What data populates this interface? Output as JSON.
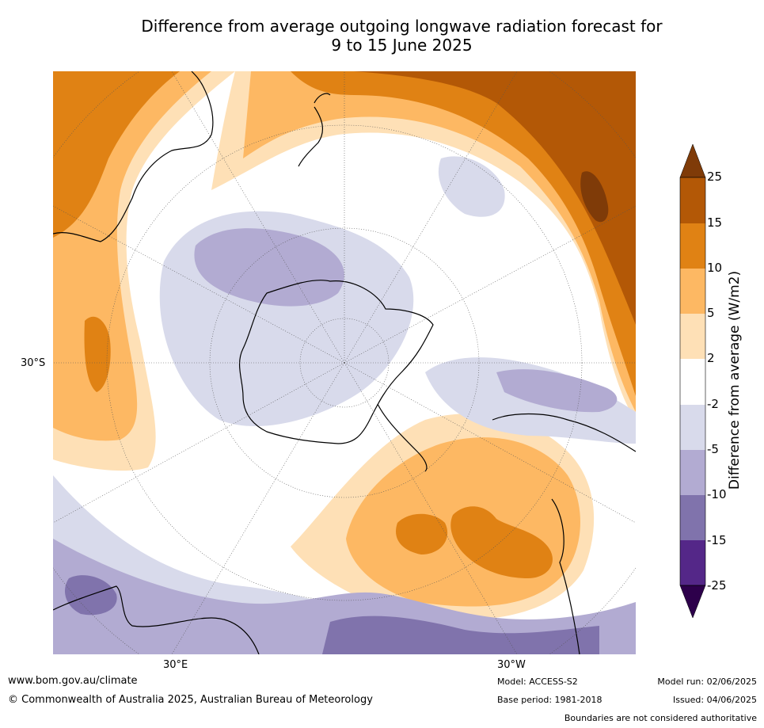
{
  "title_line1": "Difference from average outgoing longwave radiation forecast for",
  "title_line2": "9 to 15 June 2025",
  "map": {
    "projection": "south-polar-stereographic",
    "lat_label": "30°S",
    "lon_labels": [
      "30°E",
      "30°W"
    ],
    "regions": [
      {
        "name": "antarctica"
      },
      {
        "name": "australia"
      },
      {
        "name": "new-zealand"
      },
      {
        "name": "south-america"
      },
      {
        "name": "africa"
      }
    ]
  },
  "colorbar": {
    "title": "Difference from average (W/m2)",
    "ticks": [
      "25",
      "15",
      "10",
      "5",
      "2",
      "-2",
      "-5",
      "-10",
      "-15",
      "-25"
    ],
    "colors": {
      "above25": "#7f3b08",
      "15to25": "#b35806",
      "10to15": "#e08214",
      "5to10": "#fdb863",
      "2to5": "#fee0b6",
      "neutral": "#ffffff",
      "m5tom2": "#d8daeb",
      "m10tom5": "#b2abd2",
      "m15tom10": "#8073ac",
      "m25tom15": "#542788",
      "below_m25": "#2d004b"
    }
  },
  "footer": {
    "url": "www.bom.gov.au/climate",
    "copyright": "© Commonwealth of Australia 2025, Australian Bureau of Meteorology",
    "model": "Model: ACCESS-S2",
    "base_period": "Base period: 1981-2018",
    "model_run": "Model run: 02/06/2025",
    "issued": "Issued: 04/06/2025",
    "disclaimer": "Boundaries are not considered authoritative"
  }
}
